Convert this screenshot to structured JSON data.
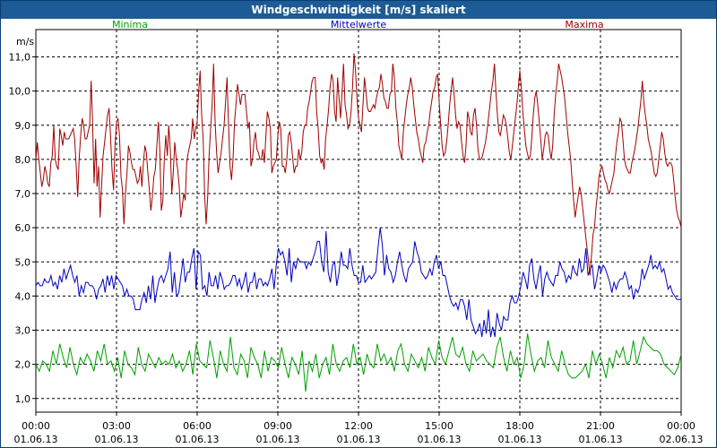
{
  "window": {
    "title": "Windgeschwindigkeit [m/s] skaliert"
  },
  "chart_data": {
    "type": "line",
    "title": "Windgeschwindigkeit [m/s] skaliert",
    "ylabel": "m/s",
    "xlabel": "",
    "ylim": [
      0.6,
      11.8
    ],
    "xlim_hours": [
      0,
      24
    ],
    "grid": true,
    "yticks": [
      1.0,
      2.0,
      3.0,
      4.0,
      5.0,
      6.0,
      7.0,
      8.0,
      9.0,
      10.0,
      11.0
    ],
    "ytick_labels": [
      "1,0",
      "2,0",
      "3,0",
      "4,0",
      "5,0",
      "6,0",
      "7,0",
      "8,0",
      "9,0",
      "10,0",
      "11,0"
    ],
    "xticks_hours": [
      0,
      3,
      6,
      9,
      12,
      15,
      18,
      21,
      24
    ],
    "xtick_times": [
      "00:00",
      "03:00",
      "06:00",
      "09:00",
      "12:00",
      "15:00",
      "18:00",
      "21:00",
      "00:00"
    ],
    "xtick_dates": [
      "01.06.13",
      "01.06.13",
      "01.06.13",
      "01.06.13",
      "01.06.13",
      "01.06.13",
      "01.06.13",
      "01.06.13",
      "02.06.13"
    ],
    "series": [
      {
        "name": "Minima",
        "color": "#00a000",
        "legend_pos": "left",
        "values": [
          2.0,
          1.8,
          2.1,
          2.0,
          1.8,
          2.4,
          2.0,
          2.6,
          2.2,
          1.9,
          2.5,
          2.0,
          1.7,
          2.2,
          2.0,
          2.3,
          2.1,
          1.8,
          2.4,
          2.1,
          2.6,
          2.0,
          2.1,
          1.8,
          2.2,
          1.6,
          2.4,
          2.0,
          1.9,
          1.7,
          2.5,
          2.0,
          1.8,
          2.3,
          2.1,
          1.9,
          2.2,
          2.0,
          2.1,
          2.0,
          2.3,
          1.9,
          2.1,
          1.8,
          2.0,
          2.4,
          1.7,
          2.6,
          2.1,
          2.0,
          1.9,
          2.7,
          2.2,
          1.6,
          2.4,
          2.0,
          1.8,
          2.8,
          1.9,
          1.7,
          2.3,
          2.1,
          1.6,
          2.5,
          2.2,
          2.0,
          1.6,
          2.4,
          1.8,
          2.2,
          2.1,
          1.9,
          2.5,
          2.0,
          1.6,
          2.2,
          2.0,
          1.7,
          2.4,
          1.2,
          2.1,
          1.8,
          2.3,
          1.6,
          2.0,
          2.2,
          1.7,
          2.6,
          2.0,
          1.8,
          2.1,
          2.2,
          1.9,
          2.6,
          2.0,
          2.2,
          1.7,
          2.3,
          2.0,
          1.9,
          2.6,
          2.1,
          2.3,
          2.0,
          2.2,
          1.8,
          2.4,
          2.6,
          2.0,
          1.8,
          2.3,
          2.1,
          1.9,
          2.2,
          1.8,
          2.5,
          2.2,
          2.0,
          2.7,
          2.2,
          2.0,
          2.4,
          2.8,
          2.3,
          2.2,
          2.5,
          2.0,
          1.8,
          2.4,
          2.1,
          2.2,
          2.3,
          2.1,
          2.0,
          1.9,
          2.5,
          2.8,
          2.2,
          1.8,
          2.4,
          2.0,
          2.2,
          1.6,
          2.0,
          2.9,
          2.3,
          1.8,
          2.1,
          2.2,
          1.9,
          2.7,
          2.2,
          2.0,
          1.8,
          2.4,
          2.0,
          1.7,
          1.6,
          1.6,
          1.7,
          1.8,
          2.0,
          1.6,
          2.4,
          2.0,
          2.3,
          2.0,
          1.6,
          2.2,
          1.9,
          2.4,
          2.2,
          2.5,
          2.0,
          2.1,
          2.7,
          2.0,
          2.4,
          2.8,
          2.6,
          2.5,
          2.4,
          2.4,
          2.3,
          2.0,
          1.9,
          1.8,
          1.7,
          1.9,
          2.3
        ]
      },
      {
        "name": "Mittelwerte",
        "color": "#0000c0",
        "legend_pos": "center",
        "values": [
          4.3,
          4.4,
          4.3,
          4.3,
          4.5,
          4.4,
          4.4,
          4.6,
          4.3,
          4.4,
          4.2,
          4.6,
          4.4,
          4.8,
          4.5,
          4.7,
          4.9,
          4.6,
          4.4,
          4.6,
          4.0,
          4.3,
          4.1,
          4.4,
          4.4,
          4.3,
          4.3,
          4.2,
          3.9,
          4.2,
          4.3,
          4.5,
          4.1,
          4.6,
          4.3,
          4.6,
          4.2,
          4.6,
          4.5,
          4.4,
          4.3,
          4.0,
          4.2,
          4.0,
          4.0,
          3.9,
          3.6,
          3.6,
          3.6,
          3.9,
          4.1,
          3.8,
          4.3,
          3.9,
          4.6,
          3.8,
          4.2,
          4.5,
          4.6,
          4.4,
          4.6,
          4.8,
          5.3,
          4.1,
          4.7,
          4.0,
          4.1,
          4.6,
          5.1,
          4.4,
          4.7,
          4.7,
          5.1,
          5.4,
          4.2,
          5.3,
          5.2,
          4.2,
          4.3,
          4.0,
          4.7,
          4.3,
          4.3,
          4.6,
          4.2,
          4.7,
          4.5,
          4.2,
          4.3,
          4.3,
          4.4,
          4.6,
          4.6,
          4.3,
          4.5,
          4.2,
          4.4,
          4.7,
          4.1,
          4.4,
          4.4,
          4.7,
          4.2,
          4.5,
          4.5,
          4.3,
          4.4,
          4.3,
          4.5,
          4.8,
          4.2,
          4.9,
          5.4,
          5.2,
          5.3,
          5.0,
          4.6,
          5.4,
          4.4,
          5.0,
          4.8,
          5.1,
          5.0,
          5.0,
          5.0,
          4.8,
          5.0,
          4.9,
          5.1,
          5.3,
          5.6,
          5.6,
          5.0,
          4.7,
          5.9,
          4.7,
          4.4,
          4.9,
          5.0,
          4.3,
          4.7,
          5.3,
          4.9,
          4.9,
          4.8,
          5.4,
          4.9,
          4.6,
          4.6,
          4.4,
          4.4,
          4.9,
          4.4,
          4.5,
          4.6,
          4.5,
          4.6,
          4.7,
          5.4,
          6.0,
          5.5,
          4.6,
          5.2,
          4.8,
          4.7,
          4.4,
          4.6,
          5.0,
          5.3,
          4.9,
          4.6,
          4.4,
          4.8,
          4.9,
          5.0,
          5.6,
          5.3,
          5.1,
          4.7,
          4.6,
          4.5,
          4.6,
          4.8,
          4.6,
          5.0,
          5.2,
          4.8,
          5.0,
          4.6,
          4.6,
          4.3,
          4.0,
          3.8,
          3.7,
          3.8,
          3.6,
          3.9,
          3.9,
          3.7,
          3.3,
          3.9,
          3.3,
          3.1,
          2.9,
          3.0,
          3.2,
          2.8,
          3.3,
          2.9,
          3.6,
          2.8,
          3.1,
          2.8,
          3.5,
          3.2,
          3.0,
          3.4,
          3.3,
          3.3,
          3.8,
          4.0,
          3.8,
          3.8,
          4.0,
          4.3,
          4.7,
          4.5,
          4.2,
          4.9,
          5.1,
          4.5,
          4.2,
          4.6,
          4.9,
          4.0,
          4.5,
          4.7,
          4.5,
          4.4,
          4.3,
          4.6,
          4.6,
          5.0,
          4.8,
          4.7,
          4.4,
          4.6,
          4.5,
          4.9,
          4.7,
          4.6,
          5.1,
          4.7,
          4.8,
          5.4,
          4.6,
          4.8,
          4.9,
          4.2,
          4.5,
          4.9,
          4.7,
          4.9,
          4.8,
          4.6,
          4.4,
          4.1,
          4.4,
          4.2,
          4.4,
          4.5,
          4.5,
          4.7,
          4.5,
          4.2,
          4.3,
          3.9,
          4.2,
          4.1,
          4.3,
          4.8,
          4.5,
          4.7,
          4.9,
          5.2,
          4.8,
          4.9,
          4.8,
          5.0,
          4.7,
          4.8,
          4.5,
          4.2,
          4.3,
          4.1,
          4.0,
          3.9,
          3.9,
          3.9
        ]
      },
      {
        "name": "Maxima",
        "color": "#a00000",
        "legend_pos": "right",
        "values": [
          8.0,
          8.5,
          8.0,
          7.6,
          7.2,
          7.4,
          7.8,
          7.6,
          7.3,
          7.2,
          7.9,
          8.1,
          9.0,
          8.0,
          7.8,
          7.7,
          8.9,
          8.7,
          8.4,
          8.8,
          8.6,
          8.6,
          8.6,
          8.7,
          8.8,
          8.9,
          8.6,
          7.8,
          6.9,
          8.0,
          8.7,
          9.2,
          9.0,
          8.6,
          8.6,
          8.8,
          9.0,
          10.3,
          9.1,
          7.3,
          8.6,
          7.2,
          7.8,
          6.3,
          7.2,
          8.1,
          8.5,
          8.9,
          9.3,
          9.5,
          8.7,
          7.7,
          7.1,
          8.4,
          9.1,
          9.2,
          8.7,
          7.5,
          7.1,
          6.1,
          7.0,
          7.6,
          8.4,
          8.2,
          7.9,
          7.7,
          7.7,
          7.5,
          7.3,
          7.4,
          7.8,
          7.2,
          7.9,
          8.4,
          8.2,
          7.6,
          7.1,
          6.5,
          6.9,
          7.5,
          7.7,
          8.4,
          9.1,
          8.3,
          6.5,
          6.8,
          8.0,
          8.7,
          8.1,
          9.0,
          8.3,
          7.0,
          7.6,
          8.5,
          8.0,
          7.7,
          7.2,
          6.3,
          6.6,
          7.0,
          6.8,
          7.9,
          8.2,
          8.4,
          8.6,
          9.2,
          8.6,
          8.9,
          9.1,
          10.0,
          10.6,
          9.3,
          8.6,
          7.0,
          6.1,
          6.9,
          8.1,
          8.9,
          9.6,
          10.8,
          9.1,
          8.2,
          7.6,
          7.9,
          8.2,
          8.6,
          9.0,
          9.7,
          10.4,
          9.0,
          7.8,
          7.4,
          8.0,
          9.1,
          9.6,
          10.2,
          9.9,
          9.6,
          9.9,
          9.9,
          9.9,
          9.4,
          8.9,
          9.1,
          7.8,
          8.0,
          8.5,
          8.8,
          8.3,
          8.2,
          8.0,
          8.0,
          8.3,
          7.9,
          8.7,
          9.4,
          9.2,
          8.9,
          7.6,
          7.8,
          7.9,
          8.0,
          8.7,
          9.1,
          8.9,
          7.8,
          7.8,
          7.6,
          8.0,
          8.7,
          8.8,
          8.5,
          8.0,
          7.6,
          7.8,
          7.8,
          8.3,
          8.0,
          8.2,
          8.8,
          9.0,
          9.0,
          9.5,
          9.7,
          10.0,
          10.3,
          10.4,
          10.4,
          9.4,
          8.9,
          8.1,
          7.9,
          8.0,
          7.7,
          8.6,
          9.0,
          9.5,
          10.1,
          10.5,
          10.3,
          9.4,
          9.1,
          10.4,
          9.8,
          9.2,
          10.0,
          10.8,
          9.6,
          9.3,
          8.9,
          9.0,
          9.4,
          10.1,
          11.1,
          10.6,
          9.8,
          9.2,
          9.0,
          8.8,
          9.6,
          10.4,
          10.0,
          9.5,
          9.4,
          9.4,
          9.5,
          9.6,
          9.5,
          9.8,
          10.0,
          10.1,
          10.5,
          10.2,
          9.8,
          9.7,
          9.5,
          9.5,
          9.9,
          10.0,
          10.8,
          10.4,
          9.5,
          9.1,
          8.4,
          8.2,
          8.0,
          8.8,
          9.2,
          9.6,
          9.9,
          10.1,
          10.4,
          10.1,
          9.6,
          9.2,
          8.8,
          8.6,
          8.3,
          8.1,
          7.9,
          8.4,
          8.5,
          8.8,
          9.0,
          9.4,
          9.7,
          10.0,
          10.1,
          10.4,
          10.5,
          9.7,
          9.0,
          8.4,
          8.1,
          8.2,
          8.5,
          9.0,
          9.6,
          10.0,
          10.4,
          9.9,
          9.3,
          8.9,
          9.1,
          9.0,
          8.5,
          8.1,
          7.9,
          8.4,
          9.4,
          9.2,
          8.8,
          8.7,
          9.3,
          9.5,
          9.0,
          8.3,
          8.0,
          8.0,
          8.1,
          8.3,
          8.5,
          8.8,
          9.2,
          9.6,
          10.0,
          10.3,
          10.8,
          10.0,
          9.3,
          8.8,
          8.7,
          9.0,
          9.3,
          9.2,
          9.0,
          8.6,
          8.2,
          8.0,
          8.4,
          8.8,
          9.2,
          9.6,
          10.1,
          10.6,
          10.1,
          9.4,
          8.9,
          8.4,
          8.2,
          8.0,
          8.1,
          8.6,
          9.3,
          9.8,
          10.0,
          9.6,
          9.1,
          8.6,
          8.0,
          8.3,
          8.7,
          8.8,
          8.7,
          8.3,
          8.0,
          8.4,
          9.3,
          9.9,
          10.3,
          10.8,
          10.6,
          10.4,
          10.1,
          9.8,
          9.3,
          8.8,
          8.4,
          8.0,
          7.4,
          6.8,
          6.3,
          6.6,
          6.9,
          7.2,
          7.0,
          6.6,
          6.2,
          5.8,
          5.4,
          5.0,
          4.6,
          5.2,
          5.8,
          6.0,
          6.6,
          7.0,
          7.5,
          7.7,
          7.8,
          7.6,
          7.4,
          7.3,
          7.1,
          7.0,
          7.2,
          7.4,
          7.6,
          8.1,
          8.5,
          8.8,
          9.2,
          9.1,
          8.6,
          8.0,
          7.8,
          7.7,
          7.6,
          7.6,
          7.9,
          8.1,
          8.3,
          8.6,
          8.9,
          9.3,
          9.7,
          10.3,
          9.7,
          9.3,
          9.0,
          8.6,
          8.4,
          8.2,
          7.9,
          7.6,
          7.5,
          7.6,
          8.0,
          8.4,
          8.8,
          8.6,
          8.2,
          7.9,
          7.8,
          7.9,
          7.9,
          7.8,
          7.4,
          6.9,
          6.5,
          6.3,
          6.2,
          6.0
        ]
      }
    ]
  }
}
